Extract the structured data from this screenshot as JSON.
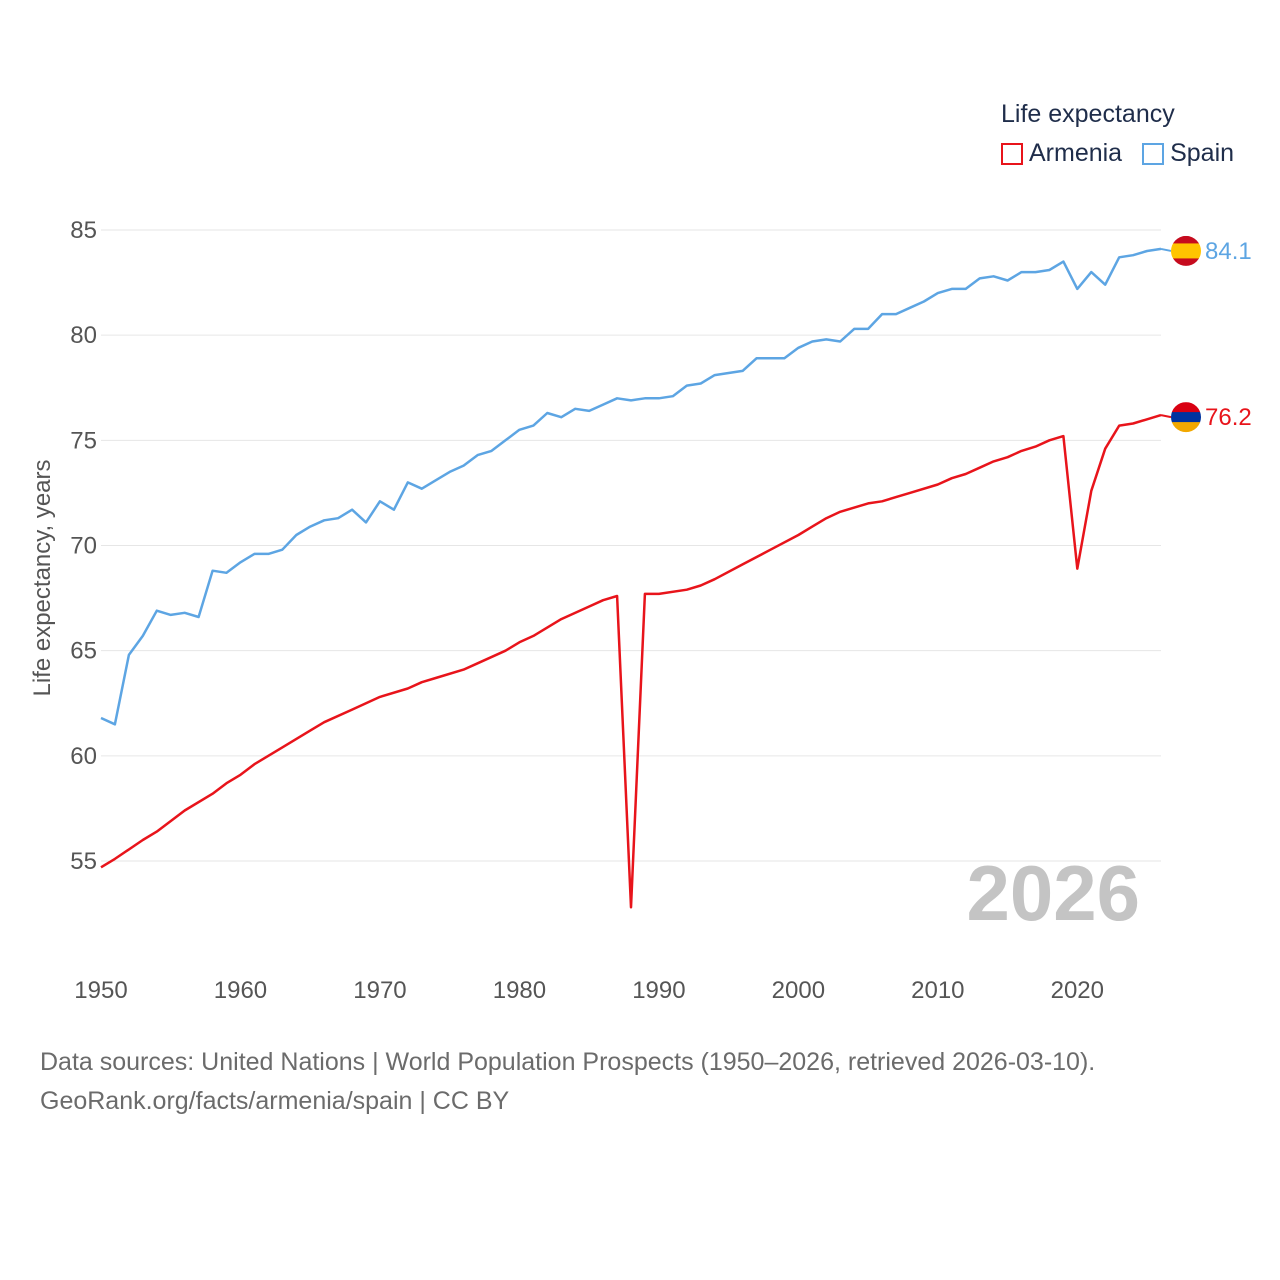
{
  "legend": {
    "title": "Life expectancy",
    "items": [
      {
        "name": "Armenia",
        "color": "#e8141b"
      },
      {
        "name": "Spain",
        "color": "#5da5e3"
      }
    ]
  },
  "footer": {
    "line1": "Data sources: United Nations | World Population Prospects (1950–2026, retrieved 2026-03-10).",
    "line2": "GeoRank.org/facts/armenia/spain | CC BY"
  },
  "chart_data": {
    "type": "line",
    "title": "Life expectancy",
    "xlabel": "",
    "ylabel": "Life expectancy, years",
    "xlim": [
      1950,
      2026
    ],
    "ylim": [
      51,
      87
    ],
    "xticks": [
      1950,
      1960,
      1970,
      1980,
      1990,
      2000,
      2010,
      2020
    ],
    "yticks": [
      55,
      60,
      65,
      70,
      75,
      80,
      85
    ],
    "grid": true,
    "year_label": "2026",
    "legend_position": "top-right",
    "series": [
      {
        "name": "Armenia",
        "color": "#e8141b",
        "end_label": "76.2",
        "flag_colors": [
          "#d90012",
          "#0033a0",
          "#f2a800"
        ],
        "points": [
          [
            1950,
            54.7
          ],
          [
            1951,
            55.1
          ],
          [
            1953,
            56.0
          ],
          [
            1954,
            56.4
          ],
          [
            1956,
            57.4
          ],
          [
            1958,
            58.2
          ],
          [
            1959,
            58.7
          ],
          [
            1960,
            59.1
          ],
          [
            1961,
            59.6
          ],
          [
            1963,
            60.4
          ],
          [
            1965,
            61.2
          ],
          [
            1966,
            61.6
          ],
          [
            1968,
            62.2
          ],
          [
            1970,
            62.8
          ],
          [
            1972,
            63.2
          ],
          [
            1973,
            63.5
          ],
          [
            1974,
            63.7
          ],
          [
            1976,
            64.1
          ],
          [
            1977,
            64.4
          ],
          [
            1979,
            65.0
          ],
          [
            1980,
            65.4
          ],
          [
            1981,
            65.7
          ],
          [
            1983,
            66.5
          ],
          [
            1985,
            67.1
          ],
          [
            1986,
            67.4
          ],
          [
            1987,
            67.6
          ],
          [
            1988,
            52.8
          ],
          [
            1989,
            67.7
          ],
          [
            1990,
            67.7
          ],
          [
            1992,
            67.9
          ],
          [
            1993,
            68.1
          ],
          [
            1994,
            68.4
          ],
          [
            1996,
            69.1
          ],
          [
            1998,
            69.8
          ],
          [
            2000,
            70.5
          ],
          [
            2001,
            70.9
          ],
          [
            2002,
            71.3
          ],
          [
            2003,
            71.6
          ],
          [
            2005,
            72.0
          ],
          [
            2006,
            72.1
          ],
          [
            2007,
            72.3
          ],
          [
            2008,
            72.5
          ],
          [
            2010,
            72.9
          ],
          [
            2011,
            73.2
          ],
          [
            2012,
            73.4
          ],
          [
            2013,
            73.7
          ],
          [
            2014,
            74.0
          ],
          [
            2015,
            74.2
          ],
          [
            2016,
            74.5
          ],
          [
            2017,
            74.7
          ],
          [
            2018,
            75.0
          ],
          [
            2019,
            75.2
          ],
          [
            2020,
            68.9
          ],
          [
            2021,
            72.6
          ],
          [
            2022,
            74.6
          ],
          [
            2023,
            75.7
          ],
          [
            2024,
            75.8
          ],
          [
            2025,
            76.0
          ],
          [
            2026,
            76.2
          ]
        ]
      },
      {
        "name": "Spain",
        "color": "#5da5e3",
        "end_label": "84.1",
        "flag_colors": [
          "#c60b1e",
          "#ffc400",
          "#c60b1e"
        ],
        "points": [
          [
            1950,
            61.8
          ],
          [
            1951,
            61.5
          ],
          [
            1952,
            64.8
          ],
          [
            1953,
            65.7
          ],
          [
            1954,
            66.9
          ],
          [
            1955,
            66.7
          ],
          [
            1956,
            66.8
          ],
          [
            1957,
            66.6
          ],
          [
            1958,
            68.8
          ],
          [
            1959,
            68.7
          ],
          [
            1960,
            69.2
          ],
          [
            1961,
            69.6
          ],
          [
            1962,
            69.6
          ],
          [
            1963,
            69.8
          ],
          [
            1964,
            70.5
          ],
          [
            1965,
            70.9
          ],
          [
            1966,
            71.2
          ],
          [
            1967,
            71.3
          ],
          [
            1968,
            71.7
          ],
          [
            1969,
            71.1
          ],
          [
            1970,
            72.1
          ],
          [
            1971,
            71.7
          ],
          [
            1972,
            73.0
          ],
          [
            1973,
            72.7
          ],
          [
            1974,
            73.1
          ],
          [
            1975,
            73.5
          ],
          [
            1976,
            73.8
          ],
          [
            1977,
            74.3
          ],
          [
            1978,
            74.5
          ],
          [
            1979,
            75.0
          ],
          [
            1980,
            75.5
          ],
          [
            1981,
            75.7
          ],
          [
            1982,
            76.3
          ],
          [
            1983,
            76.1
          ],
          [
            1984,
            76.5
          ],
          [
            1985,
            76.4
          ],
          [
            1986,
            76.7
          ],
          [
            1987,
            77.0
          ],
          [
            1988,
            76.9
          ],
          [
            1989,
            77.0
          ],
          [
            1990,
            77.0
          ],
          [
            1991,
            77.1
          ],
          [
            1992,
            77.6
          ],
          [
            1993,
            77.7
          ],
          [
            1994,
            78.1
          ],
          [
            1995,
            78.2
          ],
          [
            1996,
            78.3
          ],
          [
            1997,
            78.9
          ],
          [
            1998,
            78.9
          ],
          [
            1999,
            78.9
          ],
          [
            2000,
            79.4
          ],
          [
            2001,
            79.7
          ],
          [
            2002,
            79.8
          ],
          [
            2003,
            79.7
          ],
          [
            2004,
            80.3
          ],
          [
            2005,
            80.3
          ],
          [
            2006,
            81.0
          ],
          [
            2007,
            81.0
          ],
          [
            2008,
            81.3
          ],
          [
            2009,
            81.6
          ],
          [
            2010,
            82.0
          ],
          [
            2011,
            82.2
          ],
          [
            2012,
            82.2
          ],
          [
            2013,
            82.7
          ],
          [
            2014,
            82.8
          ],
          [
            2015,
            82.6
          ],
          [
            2016,
            83.0
          ],
          [
            2017,
            83.0
          ],
          [
            2018,
            83.1
          ],
          [
            2019,
            83.5
          ],
          [
            2020,
            82.2
          ],
          [
            2021,
            83.0
          ],
          [
            2022,
            82.4
          ],
          [
            2023,
            83.7
          ],
          [
            2024,
            83.8
          ],
          [
            2025,
            84.0
          ],
          [
            2026,
            84.1
          ]
        ]
      }
    ]
  }
}
